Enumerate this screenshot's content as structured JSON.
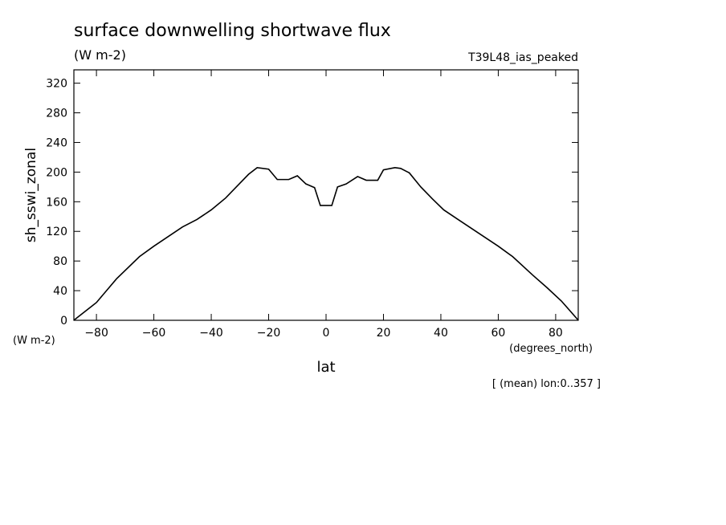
{
  "chart_data": {
    "type": "line",
    "title": "surface downwelling shortwave flux",
    "units": "(W m-2)",
    "dataset": "T39L48_ias_peaked",
    "y_label": "sh_sswi_zonal",
    "y_units": "(W m-2)",
    "x_units": "(degrees_north)",
    "x_label": "lat",
    "note": "[ (mean) lon:0..357 ]",
    "x": [
      -87.9,
      -80,
      -73,
      -65,
      -60,
      -55,
      -50,
      -45,
      -40,
      -35,
      -30,
      -27,
      -24,
      -20,
      -17,
      -13,
      -10,
      -7,
      -4,
      -2,
      2,
      4,
      7,
      11,
      14,
      18,
      20,
      24,
      26,
      29,
      33,
      37,
      41,
      46,
      53,
      60,
      65,
      72,
      77,
      82,
      87.9
    ],
    "series": [
      {
        "name": "sh_sswi_zonal",
        "color": "#000000",
        "values": [
          0,
          24,
          56,
          86,
          100,
          113,
          126,
          136,
          149,
          165,
          185,
          197,
          206,
          204,
          190,
          190,
          195,
          184,
          179,
          155,
          155,
          180,
          184,
          194,
          189,
          189,
          203,
          206,
          205,
          199,
          180,
          164,
          149,
          136,
          118,
          100,
          86,
          61,
          44,
          26,
          0
        ]
      }
    ],
    "xlim": [
      -87.86,
      87.86
    ],
    "xticks": [
      {
        "value": -80,
        "label": "−80"
      },
      {
        "value": -60,
        "label": "−60"
      },
      {
        "value": -40,
        "label": "−40"
      },
      {
        "value": -20,
        "label": "−20"
      },
      0,
      20,
      40,
      60,
      80
    ],
    "ylim": [
      0,
      338
    ],
    "yticks": [
      0,
      40,
      80,
      120,
      160,
      200,
      240,
      280,
      320
    ]
  }
}
